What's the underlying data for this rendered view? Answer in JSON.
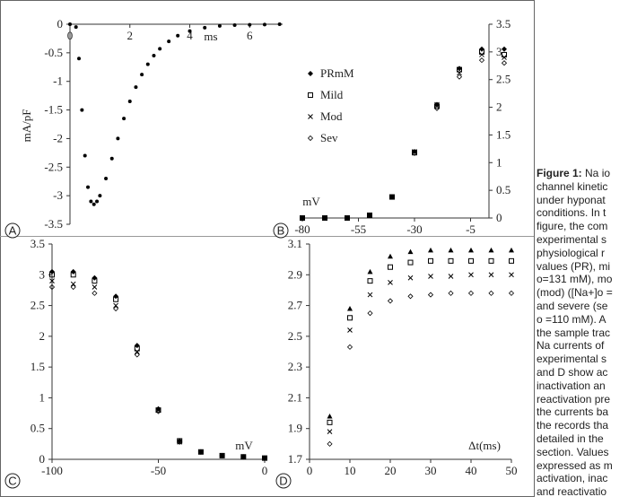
{
  "chart_data": [
    {
      "type": "scatter",
      "panel_label": "A",
      "ylabel": "mA/pF",
      "xlabel": "ms",
      "xlim": [
        0,
        7.1
      ],
      "ylim": [
        -3.5,
        0
      ],
      "xticks": [
        0,
        2,
        4,
        6
      ],
      "yticks": [
        0,
        -0.5,
        -1,
        -1.5,
        -2,
        -2.5,
        -3,
        -3.5
      ],
      "y_axis_side": "left",
      "series": [
        {
          "marker": "dot",
          "color": "#000000",
          "x": [
            0,
            0.2,
            0.3,
            0.4,
            0.5,
            0.6,
            0.7,
            0.8,
            0.9,
            1.0,
            1.2,
            1.4,
            1.6,
            1.8,
            2.0,
            2.2,
            2.4,
            2.6,
            2.8,
            3.0,
            3.3,
            3.6,
            4.0,
            4.5,
            5.0,
            5.5,
            6.0,
            6.5,
            7.0
          ],
          "values": [
            0,
            -0.05,
            -0.6,
            -1.5,
            -2.3,
            -2.85,
            -3.1,
            -3.15,
            -3.1,
            -3.0,
            -2.7,
            -2.35,
            -2.0,
            -1.65,
            -1.35,
            -1.1,
            -0.88,
            -0.7,
            -0.55,
            -0.43,
            -0.3,
            -0.2,
            -0.12,
            -0.06,
            -0.03,
            -0.015,
            -0.01,
            -0.005,
            0
          ]
        }
      ]
    },
    {
      "type": "scatter",
      "panel_label": "B",
      "xlabel": "mV",
      "xlim": [
        -80,
        3.2
      ],
      "ylim": [
        0,
        3.5
      ],
      "xticks": [
        -80,
        -55,
        -30,
        -5
      ],
      "yticks": [
        0,
        0.5,
        1,
        1.5,
        2,
        2.5,
        3,
        3.5
      ],
      "y_axis_side": "right",
      "legend": "upper-left",
      "x": [
        -80,
        -70,
        -60,
        -50,
        -40,
        -30,
        -20,
        -10,
        0,
        10
      ],
      "series": [
        {
          "name": "PRmM",
          "marker": "diamond",
          "color": "#000000",
          "values": [
            0,
            0,
            0,
            0.05,
            0.38,
            1.2,
            2.05,
            2.7,
            3.05,
            3.05
          ]
        },
        {
          "name": "Mild",
          "marker": "square",
          "color": "#000000",
          "values": [
            0,
            0,
            0,
            0.05,
            0.38,
            1.18,
            2.02,
            2.68,
            3.0,
            2.95
          ]
        },
        {
          "name": "Mod",
          "marker": "x",
          "color": "#000000",
          "values": [
            0,
            0,
            0,
            0.05,
            0.38,
            1.2,
            2.05,
            2.62,
            2.95,
            2.9
          ]
        },
        {
          "name": "Sev",
          "marker": "open-diamond",
          "color": "#000000",
          "values": [
            0,
            0,
            0,
            0.05,
            0.38,
            1.17,
            1.98,
            2.55,
            2.85,
            2.8
          ]
        }
      ]
    },
    {
      "type": "scatter",
      "panel_label": "C",
      "xlabel": "mV",
      "xlim": [
        -100,
        0
      ],
      "ylim": [
        0,
        3.5
      ],
      "xticks": [
        -100,
        -50,
        0
      ],
      "yticks": [
        0,
        0.5,
        1,
        1.5,
        2,
        2.5,
        3,
        3.5
      ],
      "y_axis_side": "left",
      "x": [
        -100,
        -90,
        -80,
        -70,
        -60,
        -50,
        -40,
        -30,
        -20,
        -10,
        0
      ],
      "series": [
        {
          "marker": "diamond",
          "color": "#000000",
          "values": [
            3.05,
            3.05,
            2.95,
            2.65,
            1.85,
            0.82,
            0.3,
            0.12,
            0.06,
            0.04,
            0.02
          ]
        },
        {
          "marker": "square",
          "color": "#000000",
          "values": [
            3.0,
            3.0,
            2.9,
            2.6,
            1.8,
            0.8,
            0.3,
            0.12,
            0.06,
            0.04,
            0.02
          ]
        },
        {
          "marker": "x",
          "color": "#000000",
          "values": [
            2.9,
            2.85,
            2.8,
            2.5,
            1.75,
            0.8,
            0.28,
            0.12,
            0.06,
            0.04,
            0.02
          ]
        },
        {
          "marker": "open-diamond",
          "color": "#000000",
          "values": [
            2.8,
            2.8,
            2.7,
            2.45,
            1.7,
            0.78,
            0.28,
            0.12,
            0.06,
            0.04,
            0.02
          ]
        }
      ]
    },
    {
      "type": "scatter",
      "panel_label": "D",
      "xlabel": "Δt(ms)",
      "xlim": [
        0,
        50
      ],
      "ylim": [
        1.7,
        3.1
      ],
      "xticks": [
        0,
        10,
        20,
        30,
        40,
        50
      ],
      "yticks": [
        1.7,
        1.9,
        2.1,
        2.3,
        2.5,
        2.7,
        2.9,
        3.1
      ],
      "y_axis_side": "left",
      "x": [
        5,
        10,
        15,
        20,
        25,
        30,
        35,
        40,
        45,
        50
      ],
      "series": [
        {
          "marker": "triangle",
          "color": "#000000",
          "values": [
            1.98,
            2.68,
            2.92,
            3.02,
            3.05,
            3.06,
            3.06,
            3.06,
            3.06,
            3.06
          ]
        },
        {
          "marker": "square",
          "color": "#000000",
          "values": [
            1.94,
            2.62,
            2.86,
            2.95,
            2.98,
            2.99,
            2.99,
            2.99,
            2.99,
            2.99
          ]
        },
        {
          "marker": "x",
          "color": "#000000",
          "values": [
            1.88,
            2.54,
            2.77,
            2.85,
            2.88,
            2.89,
            2.89,
            2.9,
            2.9,
            2.9
          ]
        },
        {
          "marker": "open-diamond",
          "color": "#000000",
          "values": [
            1.8,
            2.43,
            2.65,
            2.73,
            2.76,
            2.77,
            2.78,
            2.78,
            2.78,
            2.78
          ]
        }
      ]
    }
  ],
  "caption": {
    "label": "Figure 1:",
    "first_line": "Na io",
    "lines": [
      "channel kinetic",
      "under hyponat",
      "conditions. In t",
      "figure, the com",
      "experimental s",
      "physiological r",
      "values (PR), mi",
      "o=131 mM), mo",
      "(mod) ([Na+]o =",
      "and severe (se",
      "o =110 mM). A",
      "the sample trac",
      "Na currents of",
      "experimental s",
      "and D show ac",
      "inactivation an",
      "reactivation pre",
      "the currents ba",
      "the records tha",
      "detailed in the",
      "section. Values",
      "expressed as m",
      "activation, inac",
      "and reactivatio"
    ]
  }
}
